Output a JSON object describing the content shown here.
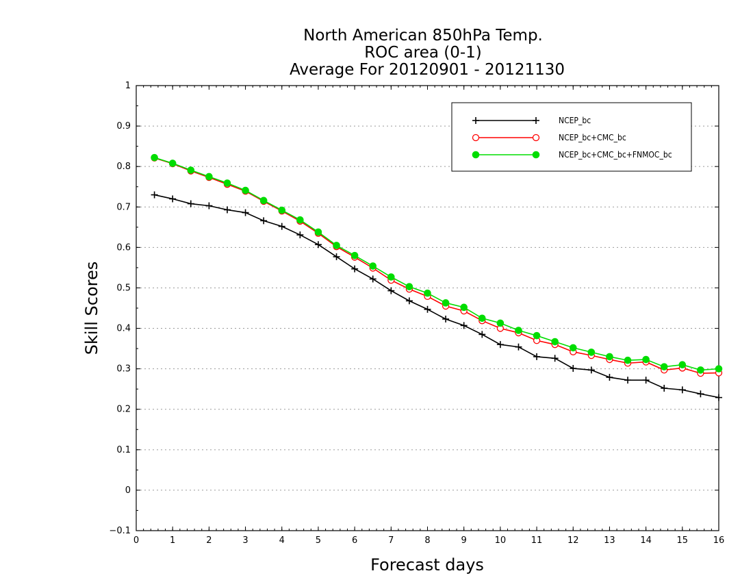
{
  "chart_data": {
    "type": "line",
    "title": [
      "North American 850hPa Temp.",
      "ROC area (0-1)",
      "Average For 20120901 - 20121130"
    ],
    "xlabel": "Forecast days",
    "ylabel": "Skill Scores",
    "xlim": [
      0,
      16
    ],
    "ylim": [
      -0.1,
      1
    ],
    "x_ticks": [
      "0",
      "1",
      "2",
      "3",
      "4",
      "5",
      "6",
      "7",
      "8",
      "9",
      "10",
      "11",
      "12",
      "13",
      "14",
      "15",
      "16"
    ],
    "y_ticks": [
      "−0.1",
      "0",
      "0.1",
      "0.2",
      "0.3",
      "0.4",
      "0.5",
      "0.6",
      "0.7",
      "0.8",
      "0.9",
      "1"
    ],
    "grid": "horizontal dotted",
    "legend_position": "top-right",
    "x": [
      0.5,
      1,
      1.5,
      2,
      2.5,
      3,
      3.5,
      4,
      4.5,
      5,
      5.5,
      6,
      6.5,
      7,
      7.5,
      8,
      8.5,
      9,
      9.5,
      10,
      10.5,
      11,
      11.5,
      12,
      12.5,
      13,
      13.5,
      14,
      14.5,
      15,
      15.5,
      16
    ],
    "series": [
      {
        "name": "NCEP_bc",
        "color": "#000000",
        "marker": "plus",
        "values": [
          0.73,
          0.72,
          0.708,
          0.703,
          0.693,
          0.686,
          0.666,
          0.652,
          0.631,
          0.607,
          0.577,
          0.547,
          0.522,
          0.493,
          0.468,
          0.447,
          0.423,
          0.407,
          0.385,
          0.36,
          0.354,
          0.33,
          0.326,
          0.301,
          0.297,
          0.279,
          0.272,
          0.272,
          0.252,
          0.248,
          0.238,
          0.229
        ]
      },
      {
        "name": "NCEP_bc+CMC_bc",
        "color": "#ff0000",
        "marker": "open-circle",
        "values": [
          0.821,
          0.807,
          0.789,
          0.773,
          0.756,
          0.739,
          0.714,
          0.69,
          0.665,
          0.635,
          0.602,
          0.576,
          0.549,
          0.519,
          0.497,
          0.479,
          0.455,
          0.443,
          0.419,
          0.4,
          0.389,
          0.37,
          0.36,
          0.342,
          0.333,
          0.323,
          0.314,
          0.317,
          0.297,
          0.302,
          0.289,
          0.29
        ]
      },
      {
        "name": "NCEP_bc+CMC_bc+FNMOC_bc",
        "color": "#00dd00",
        "marker": "filled-circle",
        "values": [
          0.822,
          0.808,
          0.791,
          0.775,
          0.759,
          0.741,
          0.716,
          0.692,
          0.668,
          0.638,
          0.605,
          0.58,
          0.554,
          0.527,
          0.503,
          0.487,
          0.463,
          0.452,
          0.425,
          0.413,
          0.395,
          0.382,
          0.367,
          0.352,
          0.341,
          0.33,
          0.321,
          0.323,
          0.305,
          0.31,
          0.297,
          0.3
        ]
      }
    ]
  }
}
